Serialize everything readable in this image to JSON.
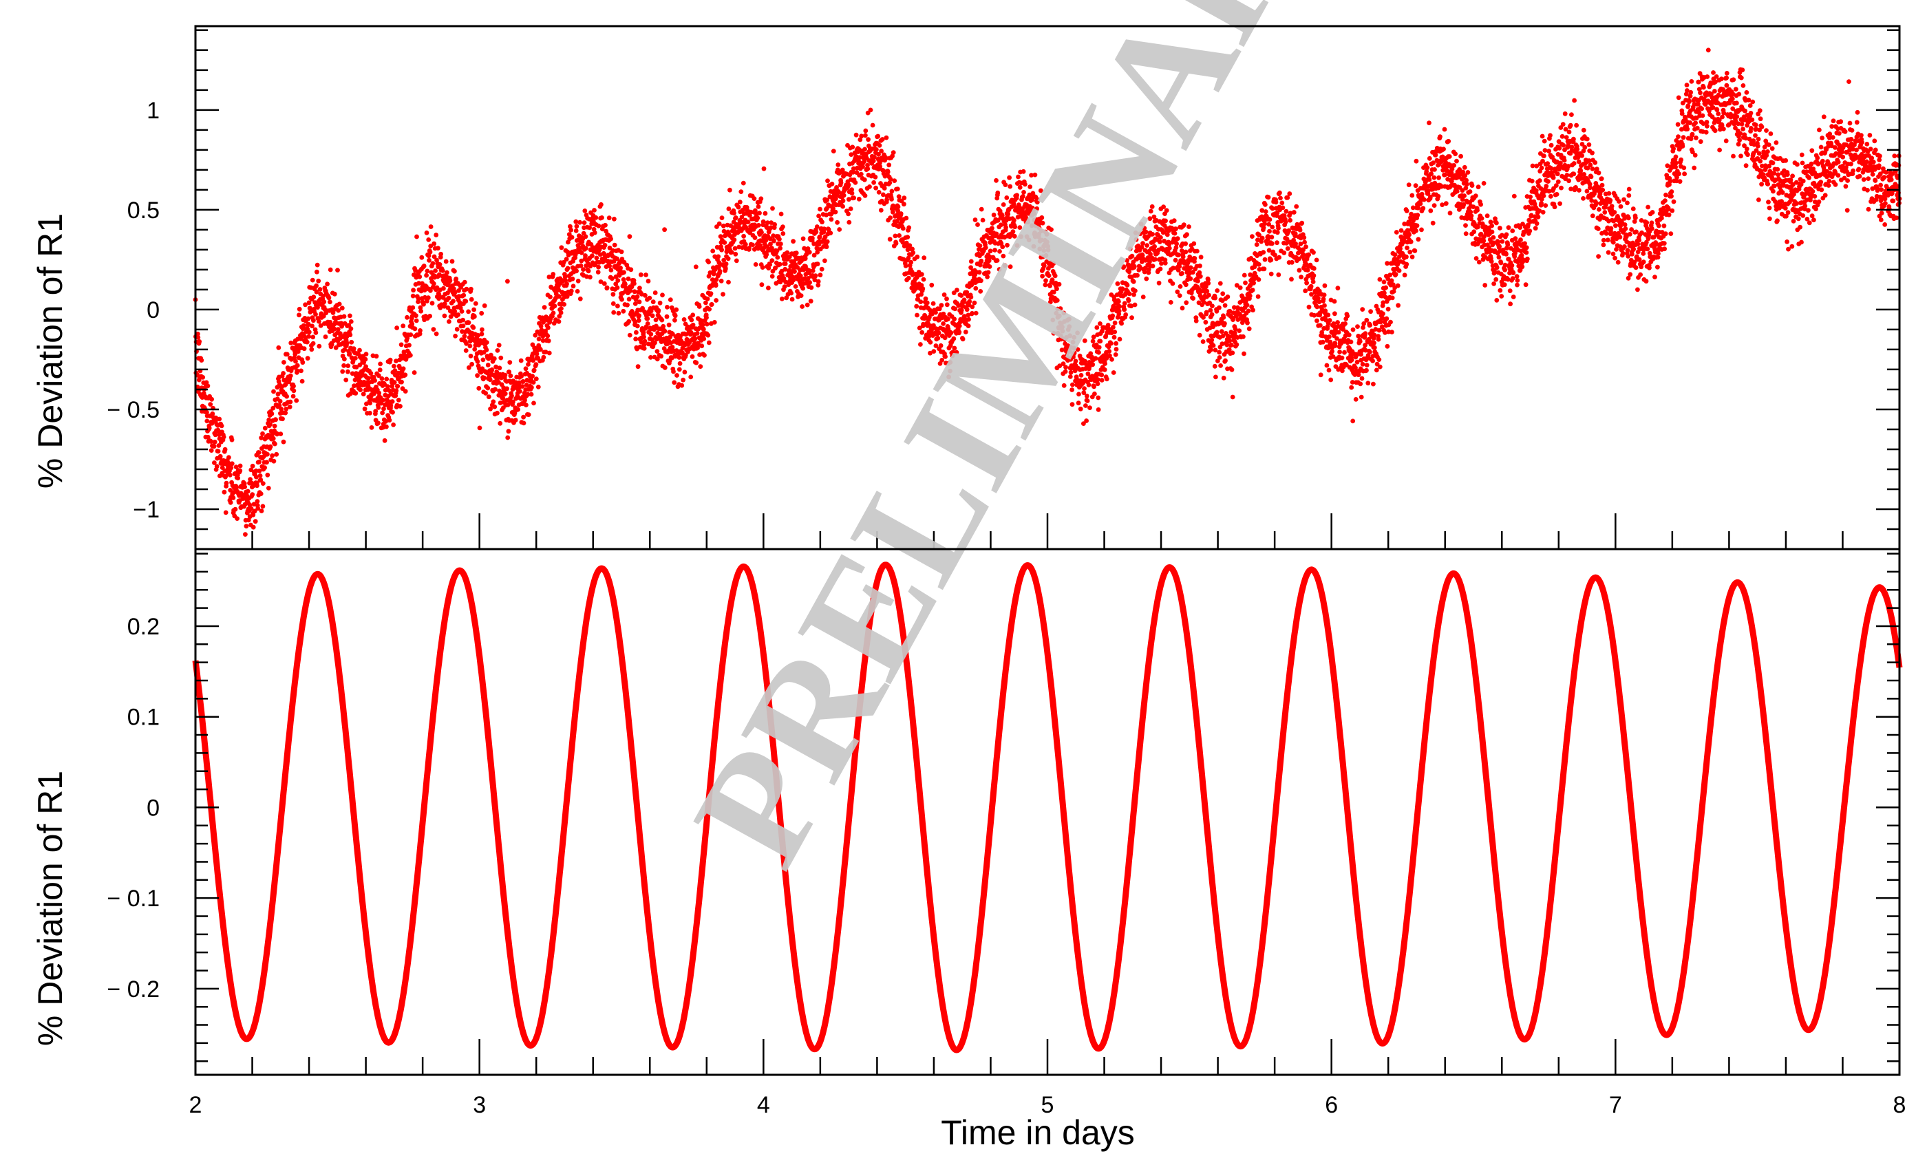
{
  "chart_data": [
    {
      "type": "scatter",
      "panel": "top",
      "ylabel": "% Deviation of R1",
      "xlim": [
        2,
        8
      ],
      "ylim": [
        -1.2,
        1.42
      ],
      "yticks": [
        1,
        0.5,
        0,
        -0.5,
        -1
      ],
      "ytick_labels": [
        "1",
        "0.5",
        "0",
        "− 0.5",
        "−1"
      ],
      "series": [
        {
          "color": "#ff0000",
          "marker": "dot",
          "trend": {
            "x": [
              2.0,
              2.03,
              2.08,
              2.12,
              2.18,
              2.22,
              2.28,
              2.35,
              2.42,
              2.5,
              2.55,
              2.62,
              2.68,
              2.72,
              2.78,
              2.85,
              2.92,
              2.98,
              3.05,
              3.12,
              3.18,
              3.25,
              3.32,
              3.4,
              3.45,
              3.52,
              3.58,
              3.65,
              3.72,
              3.78,
              3.85,
              3.92,
              3.98,
              4.05,
              4.12,
              4.18,
              4.25,
              4.32,
              4.4,
              4.45,
              4.52,
              4.58,
              4.65,
              4.72,
              4.78,
              4.85,
              4.9,
              4.95,
              5.0,
              5.05,
              5.12,
              5.18,
              5.25,
              5.32,
              5.4,
              5.45,
              5.52,
              5.58,
              5.65,
              5.7,
              5.75,
              5.82,
              5.9,
              5.95,
              6.02,
              6.08,
              6.15,
              6.2,
              6.25,
              6.32,
              6.4,
              6.45,
              6.52,
              6.58,
              6.65,
              6.7,
              6.75,
              6.82,
              6.9,
              6.95,
              7.02,
              7.08,
              7.15,
              7.2,
              7.25,
              7.32,
              7.4,
              7.45,
              7.52,
              7.58,
              7.65,
              7.7,
              7.75,
              7.82,
              7.9,
              7.95,
              8.0
            ],
            "y": [
              -0.2,
              -0.45,
              -0.65,
              -0.85,
              -0.98,
              -0.85,
              -0.55,
              -0.25,
              0.02,
              -0.05,
              -0.25,
              -0.4,
              -0.45,
              -0.35,
              0.1,
              0.15,
              0.05,
              -0.15,
              -0.35,
              -0.45,
              -0.35,
              0.0,
              0.25,
              0.35,
              0.3,
              0.1,
              -0.05,
              -0.15,
              -0.2,
              -0.1,
              0.25,
              0.45,
              0.42,
              0.25,
              0.15,
              0.25,
              0.55,
              0.72,
              0.75,
              0.6,
              0.2,
              -0.05,
              -0.15,
              0.05,
              0.3,
              0.45,
              0.5,
              0.52,
              0.25,
              -0.15,
              -0.35,
              -0.28,
              0.0,
              0.25,
              0.35,
              0.3,
              0.15,
              -0.05,
              -0.15,
              0.05,
              0.35,
              0.45,
              0.3,
              0.0,
              -0.15,
              -0.25,
              -0.15,
              0.05,
              0.3,
              0.6,
              0.7,
              0.6,
              0.4,
              0.25,
              0.25,
              0.45,
              0.65,
              0.78,
              0.72,
              0.5,
              0.4,
              0.3,
              0.35,
              0.65,
              0.95,
              1.05,
              1.05,
              0.95,
              0.75,
              0.6,
              0.55,
              0.65,
              0.75,
              0.78,
              0.72,
              0.6,
              0.6
            ],
            "scatter_spread": 0.09
          }
        }
      ]
    },
    {
      "type": "line",
      "panel": "bottom",
      "xlabel": "Time in days",
      "ylabel": "% Deviation of R1",
      "xlim": [
        2,
        8
      ],
      "ylim": [
        -0.295,
        0.285
      ],
      "xticks": [
        2,
        3,
        4,
        5,
        6,
        7,
        8
      ],
      "xtick_labels": [
        "2",
        "3",
        "4",
        "5",
        "6",
        "7",
        "8"
      ],
      "yticks": [
        0.2,
        0.1,
        0,
        -0.1,
        -0.2
      ],
      "ytick_labels": [
        "0.2",
        "0.1",
        "0",
        "− 0.1",
        "− 0.2"
      ],
      "series": [
        {
          "color": "#ff0000",
          "function": "sinusoid",
          "period_days": 0.5,
          "amplitude": {
            "x": [
              2,
              3,
              4,
              4.5,
              5,
              6,
              7,
              8
            ],
            "y": [
              0.254,
              0.262,
              0.266,
              0.268,
              0.267,
              0.262,
              0.253,
              0.242
            ]
          },
          "peak_x": 2.43,
          "start_value": 0.12,
          "end_value": 0.15
        }
      ]
    }
  ],
  "watermark": "PRELIMINARY"
}
